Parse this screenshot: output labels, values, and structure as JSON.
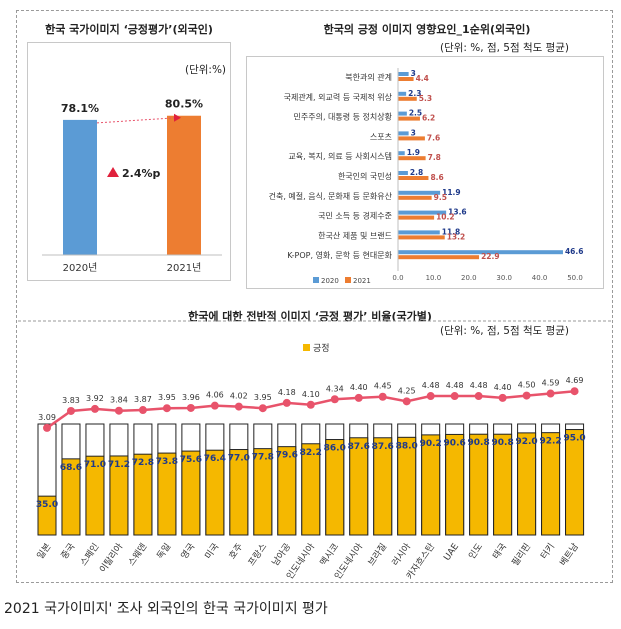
{
  "caption": "2021 국가이미지' 조사 외국인의 한국 국가이미지 평가",
  "colors": {
    "blue": "#5b9bd5",
    "orange": "#ed7d31",
    "gold": "#f5b800",
    "pink": "#e8536b",
    "navy": "#1f3a8a"
  },
  "chart_data": [
    {
      "type": "bar",
      "title": "한국 국가이미지 ‘긍정평가’(외국인)",
      "unit_label": "(단위:%)",
      "categories": [
        "2020년",
        "2021년"
      ],
      "values": [
        78.1,
        80.5
      ],
      "value_labels": [
        "78.1%",
        "80.5%"
      ],
      "change_label": "2.4%p",
      "ylim": [
        0,
        100
      ]
    },
    {
      "type": "bar",
      "orientation": "horizontal",
      "title": "한국의 긍정 이미지 영향요인_1순위(외국인)",
      "unit_label": "(단위: %, 점, 5점 척도 평균)",
      "categories": [
        "북한과의 관계",
        "국제관계, 외교력 등 국제적 위상",
        "민주주의, 대통령 등 정치상황",
        "스포츠",
        "교육, 복지, 의료 등 사회시스템",
        "한국인의 국민성",
        "건축, 예절, 음식, 문화재 등 문화유산",
        "국민 소득 등 경제수준",
        "한국산 제품 및 브랜드",
        "K-POP, 영화, 문학 등 현대문화"
      ],
      "series": [
        {
          "name": "2020",
          "values": [
            3,
            2.3,
            2.5,
            3,
            1.9,
            2.8,
            11.9,
            13.6,
            11.8,
            46.6
          ]
        },
        {
          "name": "2021",
          "values": [
            4.4,
            5.3,
            6.2,
            7.6,
            7.8,
            8.6,
            9.5,
            10.2,
            13.2,
            22.9
          ]
        }
      ],
      "xticks": [
        "0.0",
        "10.0",
        "20.0",
        "30.0",
        "40.0",
        "50.0"
      ],
      "xlim": [
        0,
        50
      ]
    },
    {
      "type": "bar",
      "title": "한국에 대한 전반적 이미지 ‘긍정 평가’ 비율(국가별)",
      "unit_label": "(단위: %, 점, 5점 척도 평균)",
      "legend": "긍정",
      "categories": [
        "일본",
        "중국",
        "스페인",
        "이탈리아",
        "스웨덴",
        "독일",
        "영국",
        "미국",
        "호주",
        "프랑스",
        "남아공",
        "인도네시아",
        "멕시코",
        "인도네시아",
        "브라질",
        "러시아",
        "카자흐스탄",
        "UAE",
        "인도",
        "태국",
        "필리핀",
        "터키",
        "베트남"
      ],
      "series": [
        {
          "name": "긍정",
          "values": [
            35.0,
            68.6,
            71.0,
            71.2,
            72.8,
            73.8,
            75.6,
            76.4,
            77.0,
            77.8,
            79.6,
            82.2,
            86.0,
            87.6,
            87.6,
            88.0,
            90.2,
            90.6,
            90.8,
            90.8,
            92.0,
            92.2,
            95.0
          ]
        },
        {
          "name": "5점 척도 평균",
          "values": [
            3.09,
            3.83,
            3.92,
            3.84,
            3.87,
            3.95,
            3.96,
            4.06,
            4.02,
            3.95,
            4.18,
            4.1,
            4.34,
            4.4,
            4.45,
            4.25,
            4.48,
            4.48,
            4.48,
            4.4,
            4.5,
            4.59,
            4.69
          ]
        }
      ],
      "ylim": [
        0,
        100
      ]
    }
  ]
}
